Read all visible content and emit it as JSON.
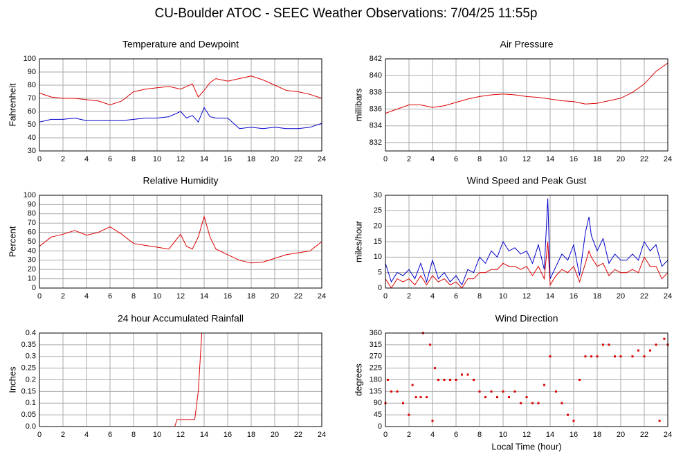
{
  "title": "CU-Boulder ATOC - SEEC Weather Observations: 7/04/25 11:55p",
  "chart_data": [
    {
      "type": "line",
      "title": "Temperature and Dewpoint",
      "ylabel": "Fahrenheit",
      "x": [
        0,
        1,
        2,
        3,
        4,
        5,
        6,
        7,
        8,
        9,
        10,
        11,
        12,
        12.5,
        13,
        13.5,
        14,
        14.5,
        15,
        16,
        17,
        18,
        19,
        20,
        21,
        22,
        23,
        24
      ],
      "series": [
        {
          "color": "#dd0000",
          "values": [
            74,
            71,
            70,
            70,
            69,
            68,
            65,
            68,
            75,
            77,
            78,
            79,
            77,
            79,
            81,
            71,
            76,
            82,
            85,
            83,
            85,
            87,
            84,
            80,
            76,
            75,
            73,
            70
          ]
        },
        {
          "color": "#0000cc",
          "values": [
            52,
            54,
            54,
            55,
            53,
            53,
            53,
            53,
            54,
            55,
            55,
            56,
            60,
            55,
            57,
            52,
            63,
            56,
            55,
            55,
            47,
            48,
            47,
            48,
            47,
            47,
            48,
            51
          ]
        }
      ],
      "xlim": [
        0,
        24
      ],
      "xticks": [
        0,
        2,
        4,
        6,
        8,
        10,
        12,
        14,
        16,
        18,
        20,
        22,
        24
      ],
      "ylim": [
        30,
        100
      ],
      "yticks": [
        30,
        40,
        50,
        60,
        70,
        80,
        90,
        100
      ],
      "grid": true
    },
    {
      "type": "line",
      "title": "Air Pressure",
      "ylabel": "millibars",
      "x": [
        0,
        1,
        2,
        3,
        4,
        5,
        6,
        7,
        8,
        9,
        10,
        11,
        12,
        13,
        14,
        15,
        16,
        17,
        18,
        19,
        20,
        21,
        22,
        23,
        24
      ],
      "series": [
        {
          "color": "#dd0000",
          "values": [
            835.5,
            836.0,
            836.5,
            836.5,
            836.2,
            836.4,
            836.8,
            837.2,
            837.5,
            837.7,
            837.8,
            837.7,
            837.5,
            837.4,
            837.2,
            837.0,
            836.9,
            836.6,
            836.7,
            837.0,
            837.3,
            838.0,
            839.0,
            840.5,
            841.5
          ]
        }
      ],
      "xlim": [
        0,
        24
      ],
      "xticks": [
        0,
        2,
        4,
        6,
        8,
        10,
        12,
        14,
        16,
        18,
        20,
        22,
        24
      ],
      "ylim": [
        831,
        842
      ],
      "yticks": [
        832,
        834,
        836,
        838,
        840,
        842
      ],
      "grid": true
    },
    {
      "type": "line",
      "title": "Relative Humidity",
      "ylabel": "Percent",
      "x": [
        0,
        1,
        2,
        3,
        4,
        5,
        6,
        7,
        8,
        9,
        10,
        11,
        12,
        12.5,
        13,
        13.5,
        14,
        14.5,
        15,
        16,
        17,
        18,
        19,
        20,
        21,
        22,
        23,
        24
      ],
      "series": [
        {
          "color": "#dd0000",
          "values": [
            45,
            55,
            58,
            62,
            57,
            60,
            66,
            58,
            48,
            46,
            44,
            42,
            58,
            45,
            42,
            55,
            77,
            55,
            42,
            36,
            30,
            27,
            28,
            32,
            36,
            38,
            40,
            50
          ]
        }
      ],
      "xlim": [
        0,
        24
      ],
      "xticks": [
        0,
        2,
        4,
        6,
        8,
        10,
        12,
        14,
        16,
        18,
        20,
        22,
        24
      ],
      "ylim": [
        0,
        100
      ],
      "yticks": [
        0,
        10,
        20,
        30,
        40,
        50,
        60,
        70,
        80,
        90,
        100
      ],
      "grid": true
    },
    {
      "type": "line",
      "title": "Wind Speed and Peak Gust",
      "ylabel": "miles/hour",
      "x": [
        0,
        0.5,
        1,
        1.5,
        2,
        2.5,
        3,
        3.5,
        4,
        4.5,
        5,
        5.5,
        6,
        6.5,
        7,
        7.5,
        8,
        8.5,
        9,
        9.5,
        10,
        10.5,
        11,
        11.5,
        12,
        12.5,
        13,
        13.5,
        13.8,
        14,
        14.5,
        15,
        15.5,
        16,
        16.5,
        17,
        17.3,
        17.5,
        18,
        18.5,
        19,
        19.5,
        20,
        20.5,
        21,
        21.5,
        22,
        22.5,
        23,
        23.5,
        24
      ],
      "series": [
        {
          "color": "#0000cc",
          "values": [
            8,
            2,
            5,
            4,
            6,
            3,
            8,
            2,
            9,
            3,
            5,
            2,
            4,
            1,
            6,
            5,
            10,
            8,
            12,
            10,
            15,
            12,
            13,
            11,
            12,
            8,
            14,
            6,
            29,
            3,
            7,
            11,
            9,
            14,
            4,
            18,
            23,
            17,
            12,
            16,
            8,
            11,
            9,
            9,
            11,
            9,
            15,
            12,
            14,
            7,
            9
          ]
        },
        {
          "color": "#dd0000",
          "values": [
            3,
            0,
            3,
            2,
            3,
            1,
            4,
            1,
            4,
            2,
            3,
            1,
            2,
            0,
            3,
            3,
            5,
            5,
            6,
            6,
            8,
            7,
            7,
            6,
            7,
            4,
            7,
            3,
            15,
            1,
            4,
            6,
            5,
            7,
            2,
            8,
            12,
            10,
            7,
            8,
            4,
            6,
            5,
            5,
            6,
            5,
            10,
            7,
            7,
            3,
            5
          ]
        }
      ],
      "xlim": [
        0,
        24
      ],
      "xticks": [
        0,
        2,
        4,
        6,
        8,
        10,
        12,
        14,
        16,
        18,
        20,
        22,
        24
      ],
      "ylim": [
        0,
        30
      ],
      "yticks": [
        0,
        5,
        10,
        15,
        20,
        25,
        30
      ],
      "grid": true
    },
    {
      "type": "line",
      "title": "24 hour Accumulated Rainfall",
      "ylabel": "Inches",
      "x": [
        0,
        11.5,
        11.7,
        13.2,
        13.5,
        13.8,
        24
      ],
      "series": [
        {
          "color": "#dd0000",
          "values": [
            0,
            0,
            0.03,
            0.03,
            0.15,
            0.4,
            0.4
          ]
        }
      ],
      "xlim": [
        0,
        24
      ],
      "xticks": [
        0,
        2,
        4,
        6,
        8,
        10,
        12,
        14,
        16,
        18,
        20,
        22,
        24
      ],
      "ylim": [
        0,
        0.4
      ],
      "yticks": [
        {
          "value": 0,
          "label": "0.0"
        },
        0.05,
        0.1,
        0.15,
        0.2,
        0.25,
        0.3,
        0.35,
        0.4
      ],
      "grid": true
    },
    {
      "type": "scatter",
      "title": "Wind Direction",
      "ylabel": "degrees",
      "xlabel": "Local Time (hour)",
      "x": [
        0,
        0.2,
        0.5,
        1,
        1.5,
        2,
        2.3,
        2.6,
        3,
        3.2,
        3.5,
        3.8,
        4,
        4.2,
        4.5,
        5,
        5.5,
        6,
        6.5,
        7,
        7.5,
        8,
        8.5,
        9,
        9.5,
        10,
        10.5,
        11,
        11.5,
        12,
        12.5,
        13,
        13.5,
        14,
        14.5,
        15,
        15.5,
        16,
        16.5,
        17,
        17.5,
        18,
        18.5,
        19,
        19.5,
        20,
        21,
        21.5,
        22,
        22.5,
        23,
        23.3,
        23.7,
        24
      ],
      "series": [
        {
          "color": "#dd0000",
          "values": [
            90,
            180,
            135,
            135,
            90,
            45,
            160,
            113,
            113,
            360,
            113,
            315,
            22,
            225,
            180,
            180,
            180,
            180,
            200,
            200,
            180,
            135,
            113,
            135,
            113,
            135,
            113,
            135,
            90,
            113,
            90,
            90,
            160,
            270,
            135,
            90,
            45,
            22,
            180,
            270,
            270,
            270,
            315,
            315,
            270,
            270,
            270,
            293,
            270,
            293,
            315,
            22,
            338,
            315
          ]
        }
      ],
      "xlim": [
        0,
        24
      ],
      "xticks": [
        0,
        2,
        4,
        6,
        8,
        10,
        12,
        14,
        16,
        18,
        20,
        22,
        24
      ],
      "ylim": [
        0,
        360
      ],
      "yticks": [
        0,
        45,
        90,
        135,
        180,
        225,
        270,
        315,
        360
      ],
      "grid": true
    }
  ]
}
